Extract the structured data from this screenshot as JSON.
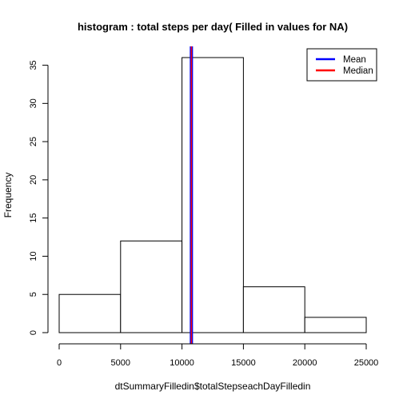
{
  "chart_data": {
    "type": "bar",
    "subtype": "histogram",
    "title": "histogram : total steps per day( Filled in values for NA)",
    "xlabel": "dtSummaryFilledin$totalStepseachDayFilledin",
    "ylabel": "Frequency",
    "bins": [
      {
        "start": 0,
        "end": 5000,
        "count": 5
      },
      {
        "start": 5000,
        "end": 10000,
        "count": 12
      },
      {
        "start": 10000,
        "end": 15000,
        "count": 36
      },
      {
        "start": 15000,
        "end": 20000,
        "count": 6
      },
      {
        "start": 20000,
        "end": 25000,
        "count": 2
      }
    ],
    "xlim": [
      0,
      25000
    ],
    "ylim": [
      0,
      36
    ],
    "x_ticks": [
      0,
      5000,
      10000,
      15000,
      20000,
      25000
    ],
    "y_ticks": [
      0,
      5,
      10,
      15,
      20,
      25,
      30,
      35
    ],
    "vlines": [
      {
        "name": "Mean",
        "value": 10766.19,
        "color": "#0000ff"
      },
      {
        "name": "Median",
        "value": 10766.19,
        "color": "#ff0000"
      }
    ],
    "legend": {
      "placement": "top-right",
      "entries": [
        {
          "label": "Mean",
          "color": "#0000ff"
        },
        {
          "label": "Median",
          "color": "#ff0000"
        }
      ]
    },
    "grid": false
  }
}
